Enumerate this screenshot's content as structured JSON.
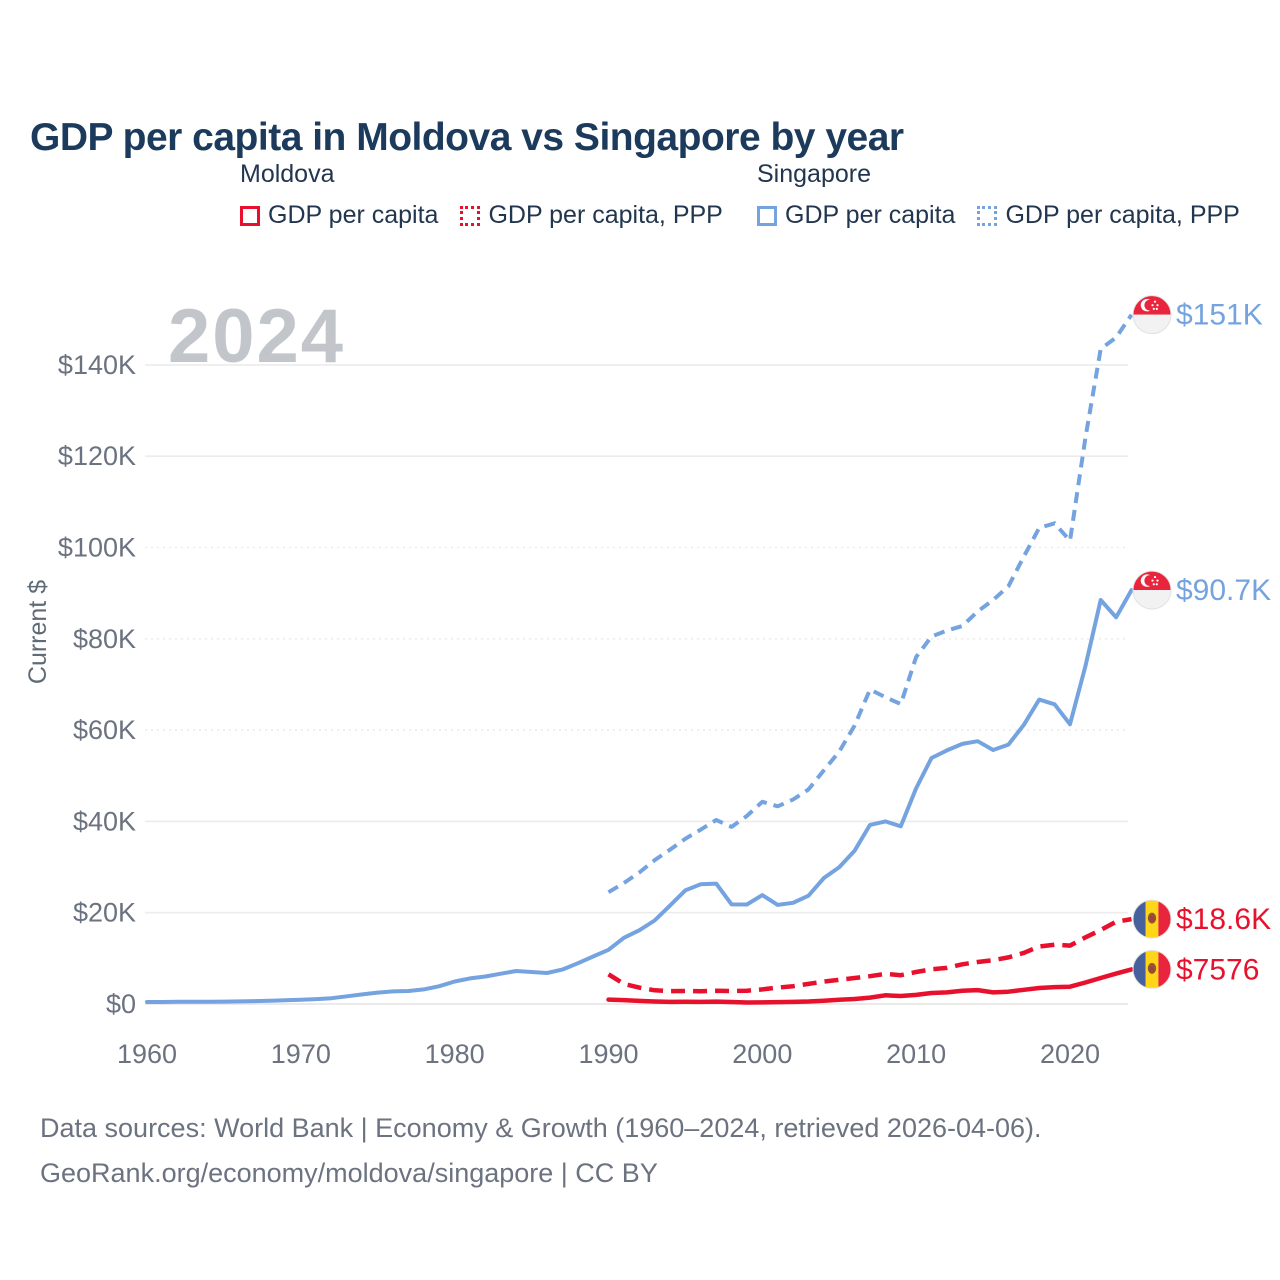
{
  "page": {
    "title": "GDP per capita in Moldova vs Singapore by year"
  },
  "colors": {
    "moldova": "#e8112d",
    "singapore": "#74a3e0",
    "title_text": "#1b3a5c",
    "axis_text": "#6b7280",
    "watermark": "#c2c6ca",
    "gridline": "#ececec"
  },
  "legend": {
    "groups": [
      {
        "title": "Moldova",
        "items": [
          {
            "label": "GDP per capita"
          },
          {
            "label": "GDP per capita, PPP"
          }
        ]
      },
      {
        "title": "Singapore",
        "items": [
          {
            "label": "GDP per capita"
          },
          {
            "label": "GDP per capita, PPP"
          }
        ]
      }
    ]
  },
  "footer": {
    "line1": "Data sources: World Bank | Economy & Growth (1960–2024, retrieved 2026-04-06).",
    "line2": "GeoRank.org/economy/moldova/singapore | CC BY"
  },
  "chart_data": {
    "type": "line",
    "title": "GDP per capita in Moldova vs Singapore by year",
    "xlabel": "",
    "ylabel": "Current $",
    "watermark": "2024",
    "grid": "horizontal",
    "legend_position": "top",
    "xlim": [
      1959,
      2025.5
    ],
    "ylim": [
      0,
      155000
    ],
    "x_ticks": [
      1960,
      1970,
      1980,
      1990,
      2000,
      2010,
      2020
    ],
    "y_ticks": [
      {
        "value": 0,
        "label": "$0",
        "dotted": false
      },
      {
        "value": 20000,
        "label": "$20K",
        "dotted": false
      },
      {
        "value": 40000,
        "label": "$40K",
        "dotted": false
      },
      {
        "value": 60000,
        "label": "$60K",
        "dotted": true
      },
      {
        "value": 80000,
        "label": "$80K",
        "dotted": true
      },
      {
        "value": 100000,
        "label": "$100K",
        "dotted": true
      },
      {
        "value": 120000,
        "label": "$120K",
        "dotted": false
      },
      {
        "value": 140000,
        "label": "$140K",
        "dotted": false
      }
    ],
    "series": [
      {
        "name": "Moldova GDP per capita",
        "country": "Moldova",
        "flag": "moldova",
        "color": "#e8112d",
        "line_style": "solid",
        "end_label": "$7576",
        "start_year": 1990,
        "values": [
          972,
          850,
          680,
          550,
          455,
          477,
          463,
          528,
          448,
          321,
          354,
          408,
          459,
          548,
          721,
          950,
          1100,
          1400,
          1900,
          1750,
          2000,
          2400,
          2550,
          2900,
          3050,
          2550,
          2700,
          3100,
          3500,
          3700,
          3800,
          4700,
          5700,
          6650,
          7576
        ]
      },
      {
        "name": "Moldova GDP per capita, PPP",
        "country": "Moldova",
        "flag": "moldova",
        "color": "#e8112d",
        "line_style": "dashed",
        "end_label": "$18.6K",
        "start_year": 1990,
        "values": [
          6500,
          4400,
          3600,
          3000,
          2800,
          2850,
          2800,
          2900,
          2850,
          2900,
          3200,
          3600,
          3900,
          4400,
          4900,
          5300,
          5700,
          6100,
          6600,
          6300,
          7000,
          7600,
          7900,
          8700,
          9200,
          9600,
          10200,
          11200,
          12600,
          13000,
          12800,
          14600,
          16200,
          18000,
          18600
        ]
      },
      {
        "name": "Singapore GDP per capita",
        "country": "Singapore",
        "flag": "singapore",
        "color": "#74a3e0",
        "line_style": "solid",
        "end_label": "$90.7K",
        "start_year": 1960,
        "values": [
          428,
          449,
          472,
          511,
          485,
          516,
          566,
          626,
          708,
          812,
          926,
          1071,
          1264,
          1685,
          2112,
          2490,
          2759,
          2847,
          3194,
          3900,
          4928,
          5597,
          6018,
          6633,
          7228,
          7002,
          6799,
          7539,
          8914,
          10395,
          11862,
          14502,
          16136,
          18290,
          21552,
          24914,
          26233,
          26376,
          21829,
          21796,
          23852,
          21700,
          22160,
          23730,
          27608,
          29961,
          33579,
          39224,
          40008,
          38927,
          47237,
          53890,
          55546,
          56967,
          57562,
          55646,
          56828,
          61150,
          66679,
          65641,
          61274,
          74000,
          88500,
          84700,
          90674
        ]
      },
      {
        "name": "Singapore GDP per capita, PPP",
        "country": "Singapore",
        "flag": "singapore",
        "color": "#74a3e0",
        "line_style": "dashed",
        "end_label": "$151K",
        "start_year": 1990,
        "values": [
          24500,
          26500,
          28800,
          31500,
          33800,
          36200,
          38200,
          40300,
          38800,
          41200,
          44300,
          43300,
          44800,
          47000,
          51200,
          55300,
          61000,
          68900,
          67200,
          65700,
          76000,
          80500,
          81800,
          82800,
          86000,
          88500,
          91500,
          98000,
          104300,
          105300,
          101500,
          124000,
          143500,
          146000,
          151000
        ]
      }
    ]
  }
}
